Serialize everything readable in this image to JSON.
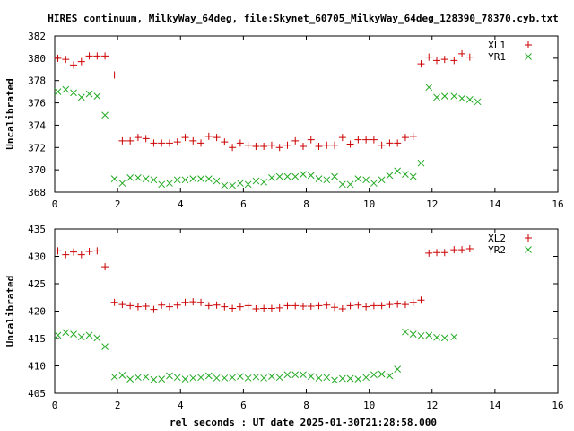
{
  "title": "HIRES continuum, MilkyWay_64deg, file:Skynet_60705_MilkyWay_64deg_128390_78370.cyb.txt",
  "xlabel": "rel seconds : UT date 2025-01-30T21:28:58.000",
  "colors": {
    "series1": "#cc0000",
    "series2": "#22aa22",
    "axis": "#000000"
  },
  "chart_data": [
    {
      "type": "scatter",
      "ylabel": "Uncalibrated",
      "xlim": [
        0,
        16
      ],
      "ylim": [
        368,
        382
      ],
      "xticks": [
        0,
        2,
        4,
        6,
        8,
        10,
        12,
        14,
        16
      ],
      "yticks": [
        368,
        370,
        372,
        374,
        376,
        378,
        380,
        382
      ],
      "legend_position": "top-right",
      "series": [
        {
          "name": "XL1",
          "marker": "+",
          "x": [
            0.1,
            0.35,
            0.6,
            0.85,
            1.1,
            1.35,
            1.6,
            1.9,
            2.15,
            2.4,
            2.65,
            2.9,
            3.15,
            3.4,
            3.65,
            3.9,
            4.15,
            4.4,
            4.65,
            4.9,
            5.15,
            5.4,
            5.65,
            5.9,
            6.15,
            6.4,
            6.65,
            6.9,
            7.15,
            7.4,
            7.65,
            7.9,
            8.15,
            8.4,
            8.65,
            8.9,
            9.15,
            9.4,
            9.65,
            9.9,
            10.15,
            10.4,
            10.65,
            10.9,
            11.15,
            11.4,
            11.65,
            11.9,
            12.15,
            12.4,
            12.7,
            12.95,
            13.2,
            13.45,
            13.7,
            13.95,
            14.2
          ],
          "y": [
            380.0,
            379.9,
            379.4,
            379.7,
            380.2,
            380.2,
            380.2,
            378.5,
            372.6,
            372.6,
            372.9,
            372.8,
            372.4,
            372.4,
            372.4,
            372.5,
            372.9,
            372.6,
            372.4,
            373.0,
            372.9,
            372.5,
            372.0,
            372.4,
            372.2,
            372.1,
            372.1,
            372.2,
            372.0,
            372.2,
            372.6,
            372.1,
            372.7,
            372.1,
            372.2,
            372.2,
            372.9,
            372.3,
            372.7,
            372.7,
            372.7,
            372.2,
            372.4,
            372.4,
            372.9,
            373.0,
            379.5,
            380.1,
            379.8,
            379.9,
            379.8,
            380.4,
            380.1,
            null,
            null,
            null,
            null
          ]
        },
        {
          "name": "YR1",
          "marker": "x",
          "x": [
            0.1,
            0.35,
            0.6,
            0.85,
            1.1,
            1.35,
            1.6,
            1.9,
            2.15,
            2.4,
            2.65,
            2.9,
            3.15,
            3.4,
            3.65,
            3.9,
            4.15,
            4.4,
            4.65,
            4.9,
            5.15,
            5.4,
            5.65,
            5.9,
            6.15,
            6.4,
            6.65,
            6.9,
            7.15,
            7.4,
            7.65,
            7.9,
            8.15,
            8.4,
            8.65,
            8.9,
            9.15,
            9.4,
            9.65,
            9.9,
            10.15,
            10.4,
            10.65,
            10.9,
            11.15,
            11.4,
            11.65,
            11.9,
            12.15,
            12.4,
            12.7,
            12.95,
            13.2,
            13.45,
            13.7,
            13.95,
            14.2
          ],
          "y": [
            377.0,
            377.2,
            376.9,
            376.5,
            376.8,
            376.6,
            374.9,
            369.2,
            368.8,
            369.3,
            369.3,
            369.2,
            369.1,
            368.7,
            368.8,
            369.1,
            369.1,
            369.2,
            369.2,
            369.2,
            369.0,
            368.6,
            368.6,
            368.8,
            368.7,
            369.0,
            368.9,
            369.3,
            369.4,
            369.4,
            369.4,
            369.6,
            369.5,
            369.2,
            369.1,
            369.4,
            368.7,
            368.7,
            369.2,
            369.1,
            368.8,
            369.1,
            369.5,
            369.9,
            369.6,
            369.4,
            370.6,
            377.4,
            376.5,
            376.6,
            376.6,
            376.4,
            376.3,
            376.1,
            null,
            null,
            null
          ]
        }
      ]
    },
    {
      "type": "scatter",
      "ylabel": "Uncalibrated",
      "xlim": [
        0,
        16
      ],
      "ylim": [
        405,
        435
      ],
      "xticks": [
        0,
        2,
        4,
        6,
        8,
        10,
        12,
        14,
        16
      ],
      "yticks": [
        405,
        410,
        415,
        420,
        425,
        430,
        435
      ],
      "legend_position": "top-right",
      "series": [
        {
          "name": "XL2",
          "marker": "+",
          "x": [
            0.1,
            0.35,
            0.6,
            0.85,
            1.1,
            1.35,
            1.6,
            1.9,
            2.15,
            2.4,
            2.65,
            2.9,
            3.15,
            3.4,
            3.65,
            3.9,
            4.15,
            4.4,
            4.65,
            4.9,
            5.15,
            5.4,
            5.65,
            5.9,
            6.15,
            6.4,
            6.65,
            6.9,
            7.15,
            7.4,
            7.65,
            7.9,
            8.15,
            8.4,
            8.65,
            8.9,
            9.15,
            9.4,
            9.65,
            9.9,
            10.15,
            10.4,
            10.65,
            10.9,
            11.15,
            11.4,
            11.65,
            11.9,
            12.15,
            12.4,
            12.7,
            12.95,
            13.2,
            13.45,
            13.7,
            13.95,
            14.2
          ],
          "y": [
            431.0,
            430.3,
            430.8,
            430.3,
            430.9,
            431.0,
            428.1,
            421.6,
            421.2,
            421.0,
            420.8,
            420.9,
            420.3,
            421.1,
            420.8,
            421.1,
            421.6,
            421.7,
            421.6,
            421.0,
            421.1,
            420.8,
            420.5,
            420.8,
            421.0,
            420.4,
            420.5,
            420.5,
            420.6,
            421.0,
            421.0,
            420.9,
            420.9,
            421.0,
            421.1,
            420.7,
            420.4,
            421.0,
            421.1,
            420.8,
            421.0,
            421.0,
            421.2,
            421.3,
            421.2,
            421.6,
            422.0,
            430.6,
            430.7,
            430.7,
            431.2,
            431.2,
            431.4,
            null,
            null,
            null,
            null
          ]
        },
        {
          "name": "YR2",
          "marker": "x",
          "x": [
            0.1,
            0.35,
            0.6,
            0.85,
            1.1,
            1.35,
            1.6,
            1.9,
            2.15,
            2.4,
            2.65,
            2.9,
            3.15,
            3.4,
            3.65,
            3.9,
            4.15,
            4.4,
            4.65,
            4.9,
            5.15,
            5.4,
            5.65,
            5.9,
            6.15,
            6.4,
            6.65,
            6.9,
            7.15,
            7.4,
            7.65,
            7.9,
            8.15,
            8.4,
            8.65,
            8.9,
            9.15,
            9.4,
            9.65,
            9.9,
            10.15,
            10.4,
            10.65,
            10.9,
            11.15,
            11.4,
            11.65,
            11.9,
            12.15,
            12.4,
            12.7,
            12.95,
            13.2,
            13.45,
            13.7,
            13.95,
            14.2
          ],
          "y": [
            415.6,
            416.1,
            415.8,
            415.3,
            415.6,
            415.1,
            413.5,
            408.0,
            408.3,
            407.6,
            407.9,
            408.0,
            407.5,
            407.6,
            408.2,
            407.9,
            407.6,
            407.8,
            407.9,
            408.2,
            407.8,
            407.8,
            407.9,
            408.1,
            407.8,
            408.0,
            407.8,
            408.1,
            407.9,
            408.4,
            408.4,
            408.4,
            408.1,
            407.8,
            407.9,
            407.4,
            407.7,
            407.7,
            407.6,
            407.9,
            408.4,
            408.5,
            408.2,
            409.4,
            416.2,
            415.8,
            415.5,
            415.6,
            415.2,
            415.1,
            415.3,
            null,
            null,
            null,
            null,
            null,
            null
          ]
        }
      ]
    }
  ]
}
